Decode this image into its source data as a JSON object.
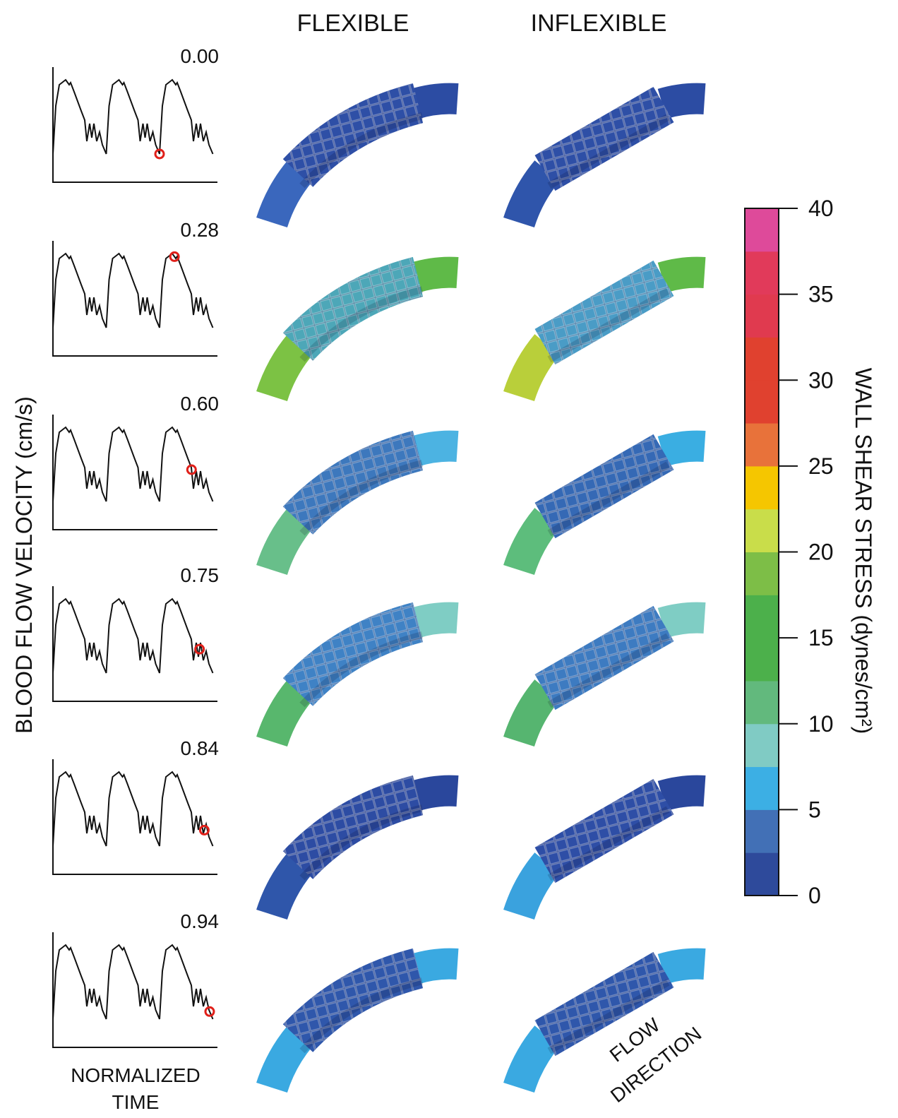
{
  "columns": [
    "FLEXIBLE",
    "INFLEXIBLE"
  ],
  "y_label": "BLOOD FLOW VELOCITY (cm/s)",
  "x_label": [
    "NORMALIZED",
    "TIME"
  ],
  "times": [
    {
      "value": 0.0,
      "label": "0.00"
    },
    {
      "value": 0.28,
      "label": "0.28"
    },
    {
      "value": 0.6,
      "label": "0.60"
    },
    {
      "value": 0.75,
      "label": "0.75"
    },
    {
      "value": 0.84,
      "label": "0.84"
    },
    {
      "value": 0.94,
      "label": "0.94"
    }
  ],
  "renders": [
    {
      "flexible": {
        "distal": "#3a67bd",
        "stent": "#2e4fa6",
        "proximal": "#2c4ca3"
      },
      "inflexible": {
        "distal": "#2f55ab",
        "stent": "#2e4fa6",
        "proximal": "#2c4ca3"
      }
    },
    {
      "flexible": {
        "distal": "#7cc244",
        "stent": "#4da7b8",
        "proximal": "#5fba48"
      },
      "inflexible": {
        "distal": "#b9cf3a",
        "stent": "#4a9cc6",
        "proximal": "#5fba48"
      }
    },
    {
      "flexible": {
        "distal": "#68bf8a",
        "stent": "#3d78bd",
        "proximal": "#4cb3e2"
      },
      "inflexible": {
        "distal": "#5dbd7c",
        "stent": "#3569b5",
        "proximal": "#3aaee2"
      }
    },
    {
      "flexible": {
        "distal": "#58b76d",
        "stent": "#3f82c5",
        "proximal": "#7fcdc4"
      },
      "inflexible": {
        "distal": "#56b570",
        "stent": "#3d7bc1",
        "proximal": "#7fcdc4"
      }
    },
    {
      "flexible": {
        "distal": "#2f56aa",
        "stent": "#2d4ca3",
        "proximal": "#2a479c"
      },
      "inflexible": {
        "distal": "#3aa2de",
        "stent": "#2e4ea6",
        "proximal": "#2a479c"
      }
    },
    {
      "flexible": {
        "distal": "#3aa9e1",
        "stent": "#2f57ab",
        "proximal": "#3aa9e1"
      },
      "inflexible": {
        "distal": "#3aa9e1",
        "stent": "#2f57ab",
        "proximal": "#3aa9e1"
      }
    }
  ],
  "colorbar": {
    "title": "WALL SHEAR STRESS (dynes/cm²)",
    "lim": [
      0,
      40
    ],
    "ticks": [
      0,
      5,
      10,
      15,
      20,
      25,
      30,
      35,
      40
    ],
    "levels": [
      "#2e4a9b",
      "#4270b6",
      "#3cafe4",
      "#80cbc4",
      "#62b97d",
      "#4cb04b",
      "#4cb04b",
      "#7dbe47",
      "#c9dd4a",
      "#f5c600",
      "#e8723a",
      "#e0412f",
      "#e0412f",
      "#e03a4f",
      "#e13a5a",
      "#de4a9a"
    ]
  },
  "flow_label": [
    "FLOW",
    "DIRECTION"
  ]
}
